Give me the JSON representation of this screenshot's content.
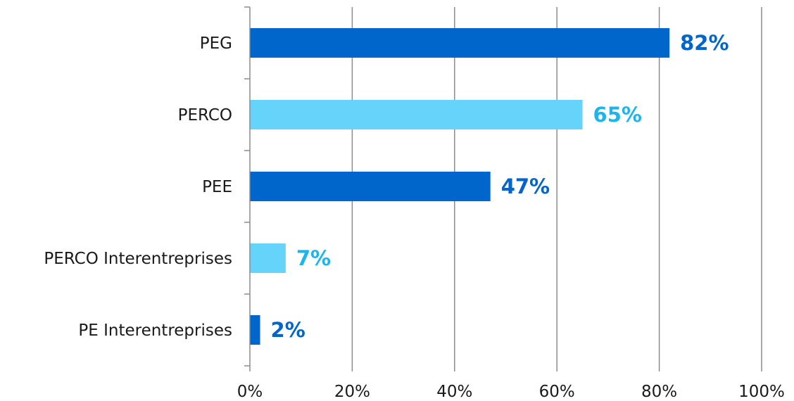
{
  "chart_data": {
    "type": "bar",
    "orientation": "horizontal",
    "categories": [
      "PEG",
      "PERCO",
      "PEE",
      "PERCO Interentreprises",
      "PE Interentreprises"
    ],
    "values": [
      82,
      65,
      47,
      7,
      2
    ],
    "data_labels": [
      "82%",
      "65%",
      "47%",
      "7%",
      "2%"
    ],
    "bar_colors": [
      "#0066CC",
      "#66D4FA",
      "#0066CC",
      "#66D4FA",
      "#0066CC"
    ],
    "label_colors": [
      "#0066CC",
      "#1EB4EC",
      "#0066CC",
      "#1EB4EC",
      "#0066CC"
    ],
    "x_ticks": [
      0,
      20,
      40,
      60,
      80,
      100
    ],
    "x_tick_labels": [
      "0%",
      "20%",
      "40%",
      "60%",
      "80%",
      "100%"
    ],
    "xlim": [
      0,
      100
    ],
    "title": "",
    "xlabel": "",
    "ylabel": "",
    "grid": "vertical",
    "legend": "none"
  }
}
